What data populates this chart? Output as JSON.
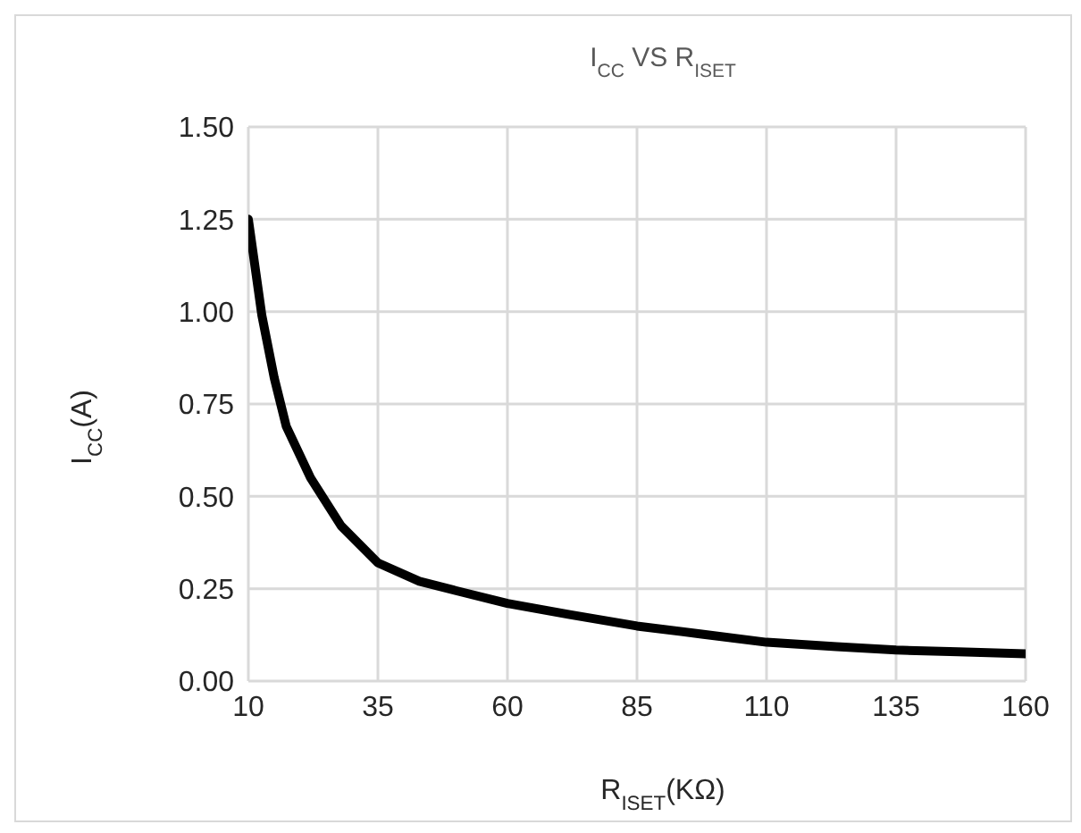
{
  "chart_data": {
    "type": "line",
    "title": "I$_{CC}$ VS R$_{ISET}$",
    "xlabel": "R$_{ISET}$(KΩ)",
    "ylabel": "I$_{CC}$(A)",
    "x": [
      10,
      12.6,
      15,
      17.3,
      22,
      27.9,
      35,
      43,
      50,
      60,
      72,
      85,
      97.5,
      110,
      123.5,
      135,
      147,
      160
    ],
    "series": [
      {
        "color": "#000000",
        "values": [
          1.25,
          0.99,
          0.82,
          0.69,
          0.55,
          0.42,
          0.32,
          0.27,
          0.245,
          0.21,
          0.18,
          0.149,
          0.127,
          0.105,
          0.093,
          0.084,
          0.079,
          0.074
        ]
      }
    ],
    "xlim": [
      10,
      160
    ],
    "xticks": [
      10,
      35,
      60,
      85,
      110,
      135,
      160
    ],
    "ylim": [
      0,
      1.5
    ],
    "yticks": [
      {
        "value": 0,
        "label": "0.00"
      },
      {
        "value": 0.25,
        "label": "0.25"
      },
      {
        "value": 0.5,
        "label": "0.50"
      },
      {
        "value": 0.75,
        "label": "0.75"
      },
      {
        "value": 1,
        "label": "1.00"
      },
      {
        "value": 1.25,
        "label": "1.25"
      },
      {
        "value": 1.5,
        "label": "1.50"
      }
    ],
    "grid": true,
    "marker": "none",
    "line_style": "solid"
  }
}
